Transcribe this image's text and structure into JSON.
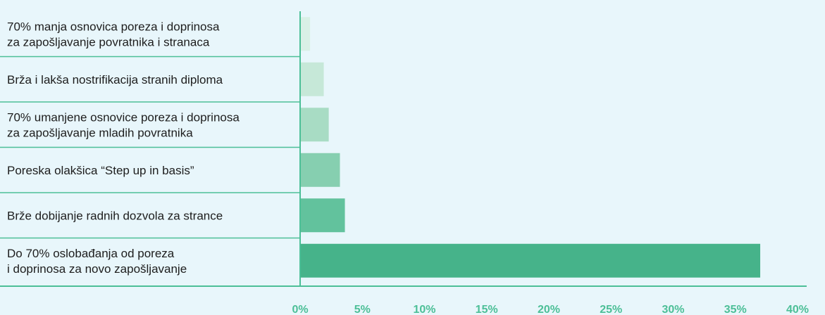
{
  "chart_data": {
    "type": "bar",
    "orientation": "horizontal",
    "categories": [
      [
        "70% manja osnovica poreza i doprinosa",
        "za zapošljavanje povratnika i stranaca"
      ],
      [
        "Brža i lakša nostrifikacija stranih diploma"
      ],
      [
        "70% umanjene osnovice poreza i doprinosa",
        "za zapošljavanje mladih povratnika"
      ],
      [
        "Poreska olakšica “Step up in basis”"
      ],
      [
        "Brže dobijanje radnih dozvola za strance"
      ],
      [
        "Do 70% oslobađanja od poreza",
        "i doprinosa za novo zapošljavanje"
      ]
    ],
    "values": [
      0.8,
      1.9,
      2.3,
      3.2,
      3.6,
      37.0
    ],
    "bar_colors": [
      "#d9f0e6",
      "#c6e8d8",
      "#a8dcc4",
      "#86cfb0",
      "#62c29d",
      "#46b38a"
    ],
    "xlim": [
      0,
      40
    ],
    "xticks": [
      0,
      5,
      10,
      15,
      20,
      25,
      30,
      35,
      40
    ],
    "xtick_labels": [
      "0%",
      "5%",
      "10%",
      "15%",
      "20%",
      "25%",
      "30%",
      "35%",
      "40%"
    ],
    "axis_color": "#4cbf97",
    "tick_color": "#4cbf97",
    "title": "",
    "xlabel": "",
    "ylabel": ""
  }
}
